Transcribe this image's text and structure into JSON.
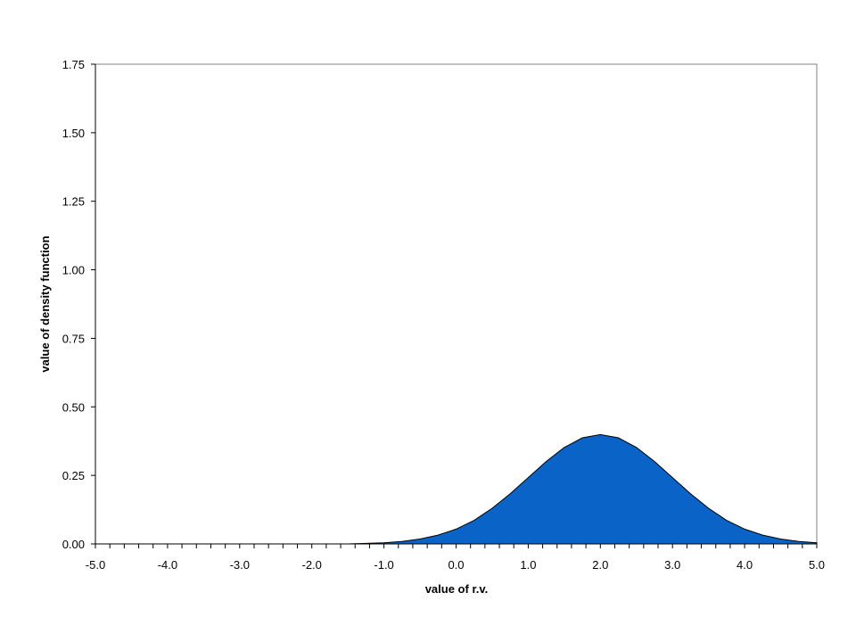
{
  "chart_data": {
    "type": "area",
    "title": "",
    "xlabel": "value of r.v.",
    "ylabel": "value of density function",
    "xlim": [
      -5.0,
      5.0
    ],
    "ylim": [
      0.0,
      1.75
    ],
    "x_ticks": [
      "-5.0",
      "-4.0",
      "-3.0",
      "-2.0",
      "-1.0",
      "0.0",
      "1.0",
      "2.0",
      "3.0",
      "4.0",
      "5.0"
    ],
    "y_ticks": [
      "0.00",
      "0.25",
      "0.50",
      "0.75",
      "1.00",
      "1.25",
      "1.50",
      "1.75"
    ],
    "grid": false,
    "legend": "none",
    "fill_color": "#0a64c8",
    "outline_color": "#000000",
    "series": [
      {
        "x": [
          -5.0,
          -4.5,
          -4.0,
          -3.5,
          -3.0,
          -2.5,
          -2.0,
          -1.5,
          -1.25,
          -1.0,
          -0.75,
          -0.5,
          -0.25,
          0.0,
          0.25,
          0.5,
          0.75,
          1.0,
          1.25,
          1.5,
          1.75,
          2.0,
          2.25,
          2.5,
          2.75,
          3.0,
          3.25,
          3.5,
          3.75,
          4.0,
          4.25,
          4.5,
          4.75,
          5.0
        ],
        "values": [
          0.0,
          0.0,
          0.0,
          0.0,
          0.0,
          0.0,
          0.0,
          0.0,
          0.002,
          0.004,
          0.009,
          0.018,
          0.032,
          0.054,
          0.086,
          0.13,
          0.183,
          0.242,
          0.301,
          0.352,
          0.387,
          0.399,
          0.387,
          0.352,
          0.301,
          0.242,
          0.183,
          0.13,
          0.086,
          0.054,
          0.032,
          0.018,
          0.009,
          0.004
        ]
      }
    ]
  }
}
